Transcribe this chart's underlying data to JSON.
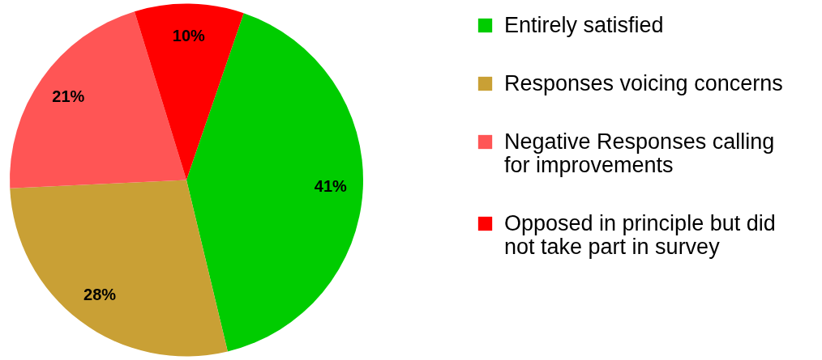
{
  "chart_data": {
    "type": "pie",
    "categories": [
      "Entirely satisfied",
      "Responses voicing concerns",
      "Negative Responses calling for improvements",
      "Opposed in principle but did not take part in survey"
    ],
    "values": [
      41,
      28,
      21,
      10
    ],
    "colors": [
      "#00cc00",
      "#c9a035",
      "#ff5555",
      "#ff0000"
    ],
    "value_labels": [
      "41%",
      "28%",
      "21%",
      "10%"
    ],
    "legend": "right"
  }
}
